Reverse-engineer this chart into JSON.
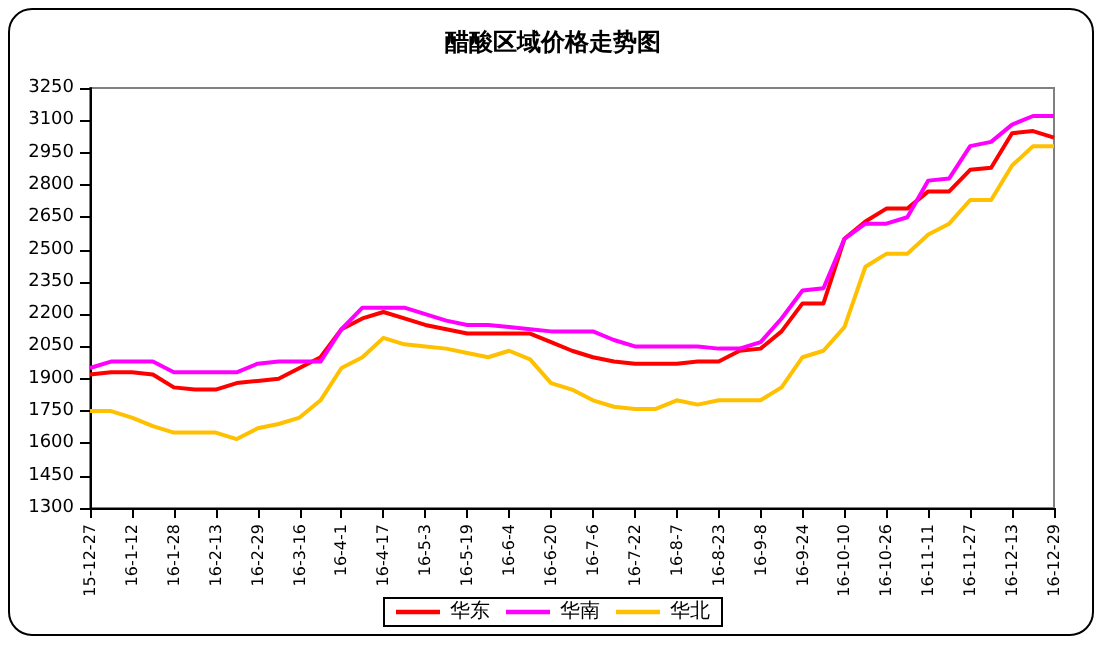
{
  "chart_data": {
    "type": "line",
    "title": "醋酸区域价格走势图",
    "categories": [
      "15-12-27",
      null,
      "16-1-12",
      null,
      "16-1-28",
      null,
      "16-2-13",
      null,
      "16-2-29",
      null,
      "16-3-16",
      null,
      "16-4-1",
      null,
      "16-4-17",
      null,
      "16-5-3",
      null,
      "16-5-19",
      null,
      "16-6-4",
      null,
      "16-6-20",
      null,
      "16-7-6",
      null,
      "16-7-22",
      null,
      "16-8-7",
      null,
      "16-8-23",
      null,
      "16-9-8",
      null,
      "16-9-24",
      null,
      "16-10-10",
      null,
      "16-10-26",
      null,
      "16-11-11",
      null,
      "16-11-27",
      null,
      "16-12-13",
      null,
      "16-12-29"
    ],
    "series": [
      {
        "name": "华东",
        "color": "#ff0000",
        "values": [
          1920,
          1930,
          1930,
          1920,
          1860,
          1850,
          1850,
          1880,
          1890,
          1900,
          1950,
          2000,
          2130,
          2180,
          2210,
          2180,
          2150,
          2130,
          2110,
          2110,
          2110,
          2110,
          2070,
          2030,
          2000,
          1980,
          1970,
          1970,
          1970,
          1980,
          1980,
          2030,
          2040,
          2120,
          2250,
          2250,
          2550,
          2630,
          2690,
          2690,
          2770,
          2770,
          2870,
          2880,
          3040,
          3050,
          3020
        ]
      },
      {
        "name": "华南",
        "color": "#ff00ff",
        "values": [
          1950,
          1980,
          1980,
          1980,
          1930,
          1930,
          1930,
          1930,
          1970,
          1980,
          1980,
          1980,
          2130,
          2230,
          2230,
          2230,
          2200,
          2170,
          2150,
          2150,
          2140,
          2130,
          2120,
          2120,
          2120,
          2080,
          2050,
          2050,
          2050,
          2050,
          2040,
          2040,
          2070,
          2180,
          2310,
          2320,
          2550,
          2620,
          2620,
          2650,
          2820,
          2830,
          2980,
          3000,
          3080,
          3120,
          3120
        ]
      },
      {
        "name": "华北",
        "color": "#ffc000",
        "values": [
          1750,
          1750,
          1720,
          1680,
          1650,
          1650,
          1650,
          1620,
          1670,
          1690,
          1720,
          1800,
          1950,
          2000,
          2090,
          2060,
          2050,
          2040,
          2020,
          2000,
          2030,
          1990,
          1880,
          1850,
          1800,
          1770,
          1760,
          1760,
          1800,
          1780,
          1800,
          1800,
          1800,
          1860,
          2000,
          2030,
          2140,
          2420,
          2480,
          2480,
          2570,
          2620,
          2730,
          2730,
          2890,
          2980,
          2980
        ]
      }
    ],
    "ylim": [
      1300,
      3250
    ],
    "yticks": [
      1300,
      1450,
      1600,
      1750,
      1900,
      2050,
      2200,
      2350,
      2500,
      2650,
      2800,
      2950,
      3100,
      3250
    ],
    "grid": false,
    "legend": "bottom",
    "marker": "none",
    "line_style": "solid"
  }
}
